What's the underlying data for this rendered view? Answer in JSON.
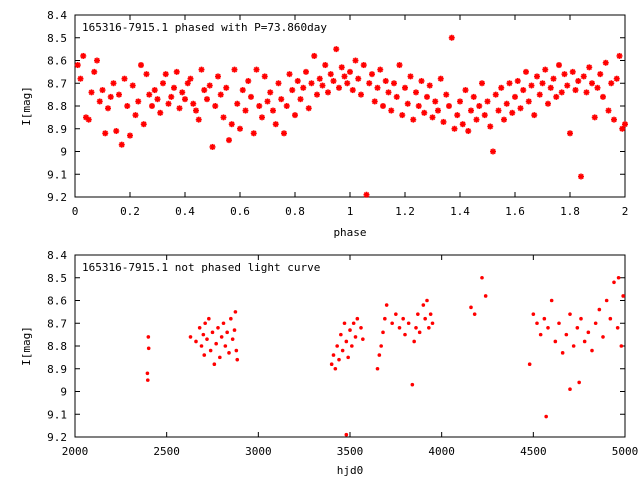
{
  "chart_data": [
    {
      "type": "scatter",
      "title": "165316-7915.1 phased with P=73.860day",
      "xlabel": "phase",
      "ylabel": "I[mag]",
      "xlim": [
        0,
        2
      ],
      "ylim": [
        9.2,
        8.4
      ],
      "y_inverted": true,
      "xticks": [
        0,
        0.2,
        0.4,
        0.6,
        0.8,
        1,
        1.2,
        1.4,
        1.6,
        1.8,
        2
      ],
      "xtick_labels": [
        "0",
        "0.2",
        "0.4",
        "0.6",
        "0.8",
        "1",
        "1.2",
        "1.4",
        "1.6",
        "1.8",
        "2"
      ],
      "yticks": [
        8.4,
        8.5,
        8.6,
        8.7,
        8.8,
        8.9,
        9,
        9.1,
        9.2
      ],
      "ytick_labels": [
        "8.4",
        "8.5",
        "8.6",
        "8.7",
        "8.8",
        "8.9",
        "9",
        "9.1",
        "9.2"
      ],
      "grid": false,
      "legend": "none",
      "marker_color": "#ff0000",
      "marker": "star",
      "points": [
        [
          0.01,
          8.62
        ],
        [
          0.02,
          8.68
        ],
        [
          0.03,
          8.58
        ],
        [
          0.04,
          8.85
        ],
        [
          0.05,
          8.86
        ],
        [
          0.06,
          8.74
        ],
        [
          0.07,
          8.65
        ],
        [
          0.08,
          8.6
        ],
        [
          0.09,
          8.78
        ],
        [
          0.1,
          8.73
        ],
        [
          0.11,
          8.92
        ],
        [
          0.12,
          8.81
        ],
        [
          0.13,
          8.76
        ],
        [
          0.14,
          8.7
        ],
        [
          0.15,
          8.91
        ],
        [
          0.16,
          8.75
        ],
        [
          0.17,
          8.97
        ],
        [
          0.18,
          8.68
        ],
        [
          0.19,
          8.8
        ],
        [
          0.2,
          8.93
        ],
        [
          0.21,
          8.71
        ],
        [
          0.22,
          8.84
        ],
        [
          0.23,
          8.78
        ],
        [
          0.24,
          8.62
        ],
        [
          0.25,
          8.88
        ],
        [
          0.26,
          8.66
        ],
        [
          0.27,
          8.75
        ],
        [
          0.28,
          8.8
        ],
        [
          0.29,
          8.73
        ],
        [
          0.3,
          8.77
        ],
        [
          0.31,
          8.83
        ],
        [
          0.32,
          8.7
        ],
        [
          0.33,
          8.66
        ],
        [
          0.34,
          8.79
        ],
        [
          0.35,
          8.76
        ],
        [
          0.36,
          8.72
        ],
        [
          0.37,
          8.65
        ],
        [
          0.38,
          8.81
        ],
        [
          0.39,
          8.74
        ],
        [
          0.4,
          8.77
        ],
        [
          0.41,
          8.7
        ],
        [
          0.42,
          8.68
        ],
        [
          0.43,
          8.79
        ],
        [
          0.44,
          8.82
        ],
        [
          0.45,
          8.86
        ],
        [
          0.46,
          8.64
        ],
        [
          0.47,
          8.73
        ],
        [
          0.48,
          8.77
        ],
        [
          0.49,
          8.71
        ],
        [
          0.5,
          8.98
        ],
        [
          0.51,
          8.8
        ],
        [
          0.52,
          8.67
        ],
        [
          0.53,
          8.75
        ],
        [
          0.54,
          8.85
        ],
        [
          0.55,
          8.72
        ],
        [
          0.56,
          8.95
        ],
        [
          0.57,
          8.88
        ],
        [
          0.58,
          8.64
        ],
        [
          0.59,
          8.79
        ],
        [
          0.6,
          8.9
        ],
        [
          0.61,
          8.73
        ],
        [
          0.62,
          8.82
        ],
        [
          0.63,
          8.69
        ],
        [
          0.64,
          8.76
        ],
        [
          0.65,
          8.92
        ],
        [
          0.66,
          8.64
        ],
        [
          0.67,
          8.8
        ],
        [
          0.68,
          8.85
        ],
        [
          0.69,
          8.67
        ],
        [
          0.7,
          8.78
        ],
        [
          0.71,
          8.74
        ],
        [
          0.72,
          8.82
        ],
        [
          0.73,
          8.88
        ],
        [
          0.74,
          8.7
        ],
        [
          0.75,
          8.77
        ],
        [
          0.76,
          8.92
        ],
        [
          0.77,
          8.8
        ],
        [
          0.78,
          8.66
        ],
        [
          0.79,
          8.73
        ],
        [
          0.8,
          8.84
        ],
        [
          0.81,
          8.69
        ],
        [
          0.82,
          8.77
        ],
        [
          0.83,
          8.72
        ],
        [
          0.84,
          8.65
        ],
        [
          0.85,
          8.81
        ],
        [
          0.86,
          8.7
        ],
        [
          0.87,
          8.58
        ],
        [
          0.88,
          8.75
        ],
        [
          0.89,
          8.68
        ],
        [
          0.9,
          8.71
        ],
        [
          0.91,
          8.62
        ],
        [
          0.92,
          8.74
        ],
        [
          0.93,
          8.66
        ],
        [
          0.94,
          8.69
        ],
        [
          0.95,
          8.55
        ],
        [
          0.96,
          8.72
        ],
        [
          0.97,
          8.63
        ],
        [
          0.98,
          8.67
        ],
        [
          0.99,
          8.7
        ],
        [
          1,
          8.65
        ],
        [
          1.01,
          8.73
        ],
        [
          1.02,
          8.6
        ],
        [
          1.03,
          8.68
        ],
        [
          1.04,
          8.75
        ],
        [
          1.05,
          8.62
        ],
        [
          1.06,
          9.19
        ],
        [
          1.07,
          8.7
        ],
        [
          1.08,
          8.66
        ],
        [
          1.09,
          8.78
        ],
        [
          1.1,
          8.72
        ],
        [
          1.11,
          8.64
        ],
        [
          1.12,
          8.8
        ],
        [
          1.13,
          8.69
        ],
        [
          1.14,
          8.74
        ],
        [
          1.15,
          8.82
        ],
        [
          1.16,
          8.7
        ],
        [
          1.17,
          8.76
        ],
        [
          1.18,
          8.62
        ],
        [
          1.19,
          8.84
        ],
        [
          1.2,
          8.72
        ],
        [
          1.21,
          8.79
        ],
        [
          1.22,
          8.67
        ],
        [
          1.23,
          8.86
        ],
        [
          1.24,
          8.74
        ],
        [
          1.25,
          8.8
        ],
        [
          1.26,
          8.69
        ],
        [
          1.27,
          8.83
        ],
        [
          1.28,
          8.76
        ],
        [
          1.29,
          8.71
        ],
        [
          1.3,
          8.85
        ],
        [
          1.31,
          8.78
        ],
        [
          1.32,
          8.82
        ],
        [
          1.33,
          8.68
        ],
        [
          1.34,
          8.87
        ],
        [
          1.35,
          8.75
        ],
        [
          1.36,
          8.8
        ],
        [
          1.37,
          8.5
        ],
        [
          1.38,
          8.9
        ],
        [
          1.39,
          8.84
        ],
        [
          1.4,
          8.78
        ],
        [
          1.41,
          8.88
        ],
        [
          1.42,
          8.73
        ],
        [
          1.43,
          8.91
        ],
        [
          1.44,
          8.82
        ],
        [
          1.45,
          8.76
        ],
        [
          1.46,
          8.86
        ],
        [
          1.47,
          8.8
        ],
        [
          1.48,
          8.7
        ],
        [
          1.49,
          8.84
        ],
        [
          1.5,
          8.78
        ],
        [
          1.51,
          8.89
        ],
        [
          1.52,
          9
        ],
        [
          1.53,
          8.75
        ],
        [
          1.54,
          8.82
        ],
        [
          1.55,
          8.72
        ],
        [
          1.56,
          8.86
        ],
        [
          1.57,
          8.79
        ],
        [
          1.58,
          8.7
        ],
        [
          1.59,
          8.83
        ],
        [
          1.6,
          8.76
        ],
        [
          1.61,
          8.69
        ],
        [
          1.62,
          8.81
        ],
        [
          1.63,
          8.73
        ],
        [
          1.64,
          8.65
        ],
        [
          1.65,
          8.78
        ],
        [
          1.66,
          8.71
        ],
        [
          1.67,
          8.84
        ],
        [
          1.68,
          8.67
        ],
        [
          1.69,
          8.75
        ],
        [
          1.7,
          8.7
        ],
        [
          1.71,
          8.64
        ],
        [
          1.72,
          8.79
        ],
        [
          1.73,
          8.72
        ],
        [
          1.74,
          8.68
        ],
        [
          1.75,
          8.76
        ],
        [
          1.76,
          8.62
        ],
        [
          1.77,
          8.74
        ],
        [
          1.78,
          8.66
        ],
        [
          1.79,
          8.71
        ],
        [
          1.8,
          8.92
        ],
        [
          1.81,
          8.65
        ],
        [
          1.82,
          8.73
        ],
        [
          1.83,
          8.69
        ],
        [
          1.84,
          9.11
        ],
        [
          1.85,
          8.67
        ],
        [
          1.86,
          8.74
        ],
        [
          1.87,
          8.63
        ],
        [
          1.88,
          8.7
        ],
        [
          1.89,
          8.85
        ],
        [
          1.9,
          8.72
        ],
        [
          1.91,
          8.66
        ],
        [
          1.92,
          8.76
        ],
        [
          1.93,
          8.61
        ],
        [
          1.94,
          8.82
        ],
        [
          1.95,
          8.7
        ],
        [
          1.96,
          8.86
        ],
        [
          1.97,
          8.68
        ],
        [
          1.98,
          8.58
        ],
        [
          1.99,
          8.9
        ],
        [
          2,
          8.88
        ]
      ]
    },
    {
      "type": "scatter",
      "title": "165316-7915.1 not phased light curve",
      "xlabel": "hjd0",
      "ylabel": "I[mag]",
      "xlim": [
        2000,
        5000
      ],
      "ylim": [
        9.2,
        8.4
      ],
      "y_inverted": true,
      "xticks": [
        2000,
        2500,
        3000,
        3500,
        4000,
        4500,
        5000
      ],
      "xtick_labels": [
        "2000",
        "2500",
        "3000",
        "3500",
        "4000",
        "4500",
        "5000"
      ],
      "yticks": [
        8.4,
        8.5,
        8.6,
        8.7,
        8.8,
        8.9,
        9,
        9.1,
        9.2
      ],
      "ytick_labels": [
        "8.4",
        "8.5",
        "8.6",
        "8.7",
        "8.8",
        "8.9",
        "9",
        "9.1",
        "9.2"
      ],
      "grid": false,
      "legend": "none",
      "marker_color": "#ff0000",
      "marker": "dot",
      "points": [
        [
          2395,
          8.92
        ],
        [
          2397,
          8.95
        ],
        [
          2400,
          8.76
        ],
        [
          2402,
          8.81
        ],
        [
          2630,
          8.76
        ],
        [
          2660,
          8.78
        ],
        [
          2680,
          8.72
        ],
        [
          2690,
          8.8
        ],
        [
          2700,
          8.75
        ],
        [
          2705,
          8.84
        ],
        [
          2710,
          8.7
        ],
        [
          2720,
          8.77
        ],
        [
          2730,
          8.68
        ],
        [
          2740,
          8.82
        ],
        [
          2750,
          8.74
        ],
        [
          2760,
          8.88
        ],
        [
          2770,
          8.79
        ],
        [
          2780,
          8.72
        ],
        [
          2790,
          8.85
        ],
        [
          2800,
          8.76
        ],
        [
          2810,
          8.7
        ],
        [
          2820,
          8.8
        ],
        [
          2830,
          8.74
        ],
        [
          2840,
          8.83
        ],
        [
          2850,
          8.68
        ],
        [
          2860,
          8.77
        ],
        [
          2870,
          8.73
        ],
        [
          2875,
          8.65
        ],
        [
          2880,
          8.82
        ],
        [
          2885,
          8.86
        ],
        [
          3400,
          8.88
        ],
        [
          3410,
          8.84
        ],
        [
          3420,
          8.9
        ],
        [
          3430,
          8.8
        ],
        [
          3440,
          8.86
        ],
        [
          3450,
          8.75
        ],
        [
          3460,
          8.82
        ],
        [
          3470,
          8.7
        ],
        [
          3480,
          8.78
        ],
        [
          3490,
          8.85
        ],
        [
          3500,
          8.73
        ],
        [
          3510,
          8.8
        ],
        [
          3520,
          8.7
        ],
        [
          3530,
          8.76
        ],
        [
          3540,
          8.68
        ],
        [
          3480,
          9.19
        ],
        [
          3560,
          8.72
        ],
        [
          3570,
          8.77
        ],
        [
          3650,
          8.9
        ],
        [
          3660,
          8.84
        ],
        [
          3670,
          8.8
        ],
        [
          3680,
          8.74
        ],
        [
          3690,
          8.68
        ],
        [
          3700,
          8.62
        ],
        [
          3730,
          8.7
        ],
        [
          3750,
          8.66
        ],
        [
          3770,
          8.72
        ],
        [
          3790,
          8.68
        ],
        [
          3800,
          8.75
        ],
        [
          3820,
          8.7
        ],
        [
          3840,
          8.97
        ],
        [
          3850,
          8.78
        ],
        [
          3860,
          8.72
        ],
        [
          3870,
          8.66
        ],
        [
          3880,
          8.74
        ],
        [
          3900,
          8.62
        ],
        [
          3910,
          8.68
        ],
        [
          3920,
          8.6
        ],
        [
          3930,
          8.72
        ],
        [
          3940,
          8.66
        ],
        [
          3950,
          8.7
        ],
        [
          4160,
          8.63
        ],
        [
          4180,
          8.66
        ],
        [
          4220,
          8.5
        ],
        [
          4240,
          8.58
        ],
        [
          4480,
          8.88
        ],
        [
          4500,
          8.66
        ],
        [
          4520,
          8.7
        ],
        [
          4540,
          8.75
        ],
        [
          4560,
          8.68
        ],
        [
          4570,
          9.11
        ],
        [
          4580,
          8.72
        ],
        [
          4600,
          8.6
        ],
        [
          4620,
          8.78
        ],
        [
          4640,
          8.7
        ],
        [
          4660,
          8.83
        ],
        [
          4680,
          8.75
        ],
        [
          4700,
          8.66
        ],
        [
          4720,
          8.8
        ],
        [
          4740,
          8.72
        ],
        [
          4760,
          8.68
        ],
        [
          4780,
          8.78
        ],
        [
          4800,
          8.74
        ],
        [
          4820,
          8.82
        ],
        [
          4840,
          8.7
        ],
        [
          4860,
          8.64
        ],
        [
          4880,
          8.76
        ],
        [
          4900,
          8.6
        ],
        [
          4920,
          8.68
        ],
        [
          4940,
          8.52
        ],
        [
          4960,
          8.72
        ],
        [
          4980,
          8.8
        ],
        [
          4990,
          8.58
        ],
        [
          4965,
          8.5
        ],
        [
          4700,
          8.99
        ],
        [
          4750,
          8.96
        ]
      ]
    }
  ]
}
